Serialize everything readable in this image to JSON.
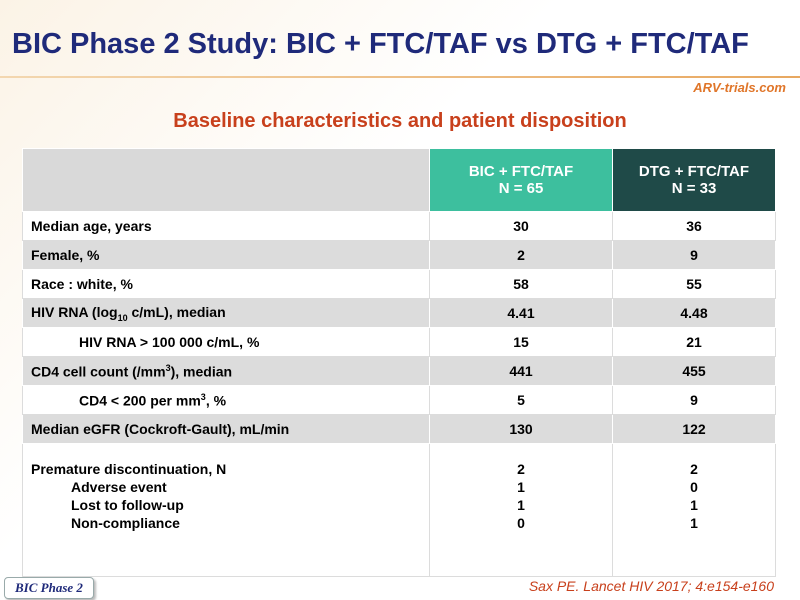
{
  "header": {
    "title": "BIC Phase 2 Study: BIC + FTC/TAF vs DTG + FTC/TAF",
    "logo": "ARV-trials.com"
  },
  "subtitle": "Baseline characteristics and patient disposition",
  "table": {
    "columns": [
      {
        "name": "BIC + FTC/TAF",
        "n": "N = 65"
      },
      {
        "name": "DTG + FTC/TAF",
        "n": "N = 33"
      }
    ],
    "rows": [
      {
        "label": [
          "Median age, years"
        ],
        "values": [
          30,
          36
        ]
      },
      {
        "label": [
          "Female, %"
        ],
        "values": [
          2,
          9
        ]
      },
      {
        "label": [
          "Race : white, %"
        ],
        "values": [
          58,
          55
        ]
      },
      {
        "label": [
          "HIV RNA (log",
          "10",
          " c/mL), median"
        ],
        "values": [
          4.41,
          4.48
        ]
      },
      {
        "label": [
          "HIV RNA > 100 000 c/mL, %"
        ],
        "values": [
          15,
          21
        ]
      },
      {
        "label": [
          "CD4 cell count (/mm",
          "3",
          "), median"
        ],
        "values": [
          441,
          455
        ]
      },
      {
        "label": [
          "CD4 < 200 per mm",
          "3",
          ", %"
        ],
        "values": [
          5,
          9
        ]
      },
      {
        "label": [
          "Median eGFR (Cockroft-Gault), mL/min"
        ],
        "values": [
          130,
          122
        ]
      },
      {
        "label": [
          "Premature discontinuation, N"
        ],
        "sublabels": [
          "Adverse event",
          "Lost to follow-up",
          "Non-compliance"
        ],
        "values": [
          [
            2,
            1,
            1,
            0
          ],
          [
            2,
            0,
            1,
            1
          ]
        ]
      }
    ]
  },
  "footer": {
    "tag": "BIC Phase 2",
    "citation": "Sax PE. Lancet HIV 2017; 4:e154-e160"
  }
}
